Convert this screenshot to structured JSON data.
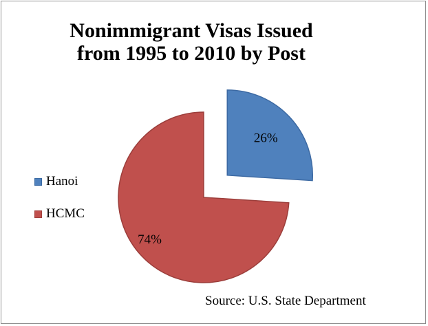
{
  "chart_data": {
    "type": "pie",
    "title": "Nonimmigrant Visas Issued from 1995 to 2010 by Post",
    "title_lines": [
      "Nonimmigrant Visas Issued",
      "from 1995 to 2010 by Post"
    ],
    "slices": [
      {
        "name": "Hanoi",
        "value": 26,
        "label": "26%",
        "color": "#4f81bd",
        "exploded": true
      },
      {
        "name": "HCMC",
        "value": 74,
        "label": "74%",
        "color": "#c0504d",
        "exploded": false
      }
    ],
    "legend_position": "left",
    "source": "Source: U.S. State Department"
  }
}
